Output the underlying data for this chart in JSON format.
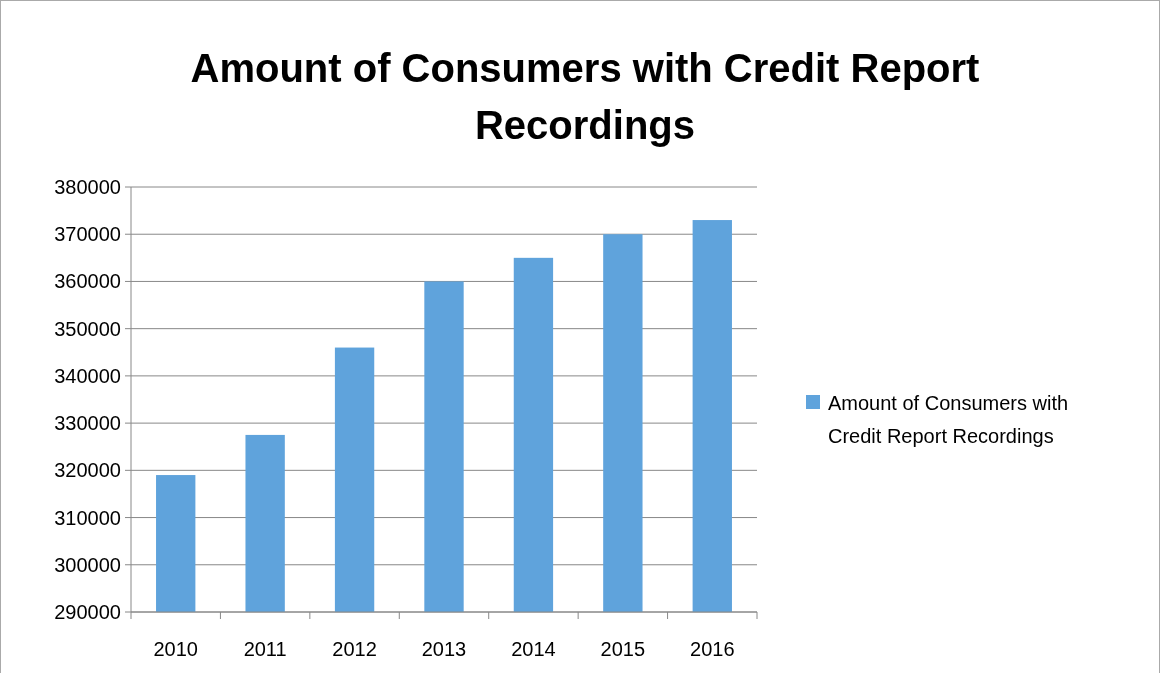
{
  "chart_data": {
    "type": "bar",
    "title": "Amount of Consumers with Credit Report Recordings",
    "categories": [
      "2010",
      "2011",
      "2012",
      "2013",
      "2014",
      "2015",
      "2016"
    ],
    "series": [
      {
        "name": "Amount of Consumers with Credit Report Recordings",
        "color": "#5fa3dc",
        "values": [
          319000,
          327500,
          346000,
          360000,
          365000,
          370000,
          373000
        ]
      }
    ],
    "ylim": [
      290000,
      380000
    ],
    "yticks": [
      290000,
      300000,
      310000,
      320000,
      330000,
      340000,
      350000,
      360000,
      370000,
      380000
    ],
    "grid": "y",
    "legend": "right"
  }
}
